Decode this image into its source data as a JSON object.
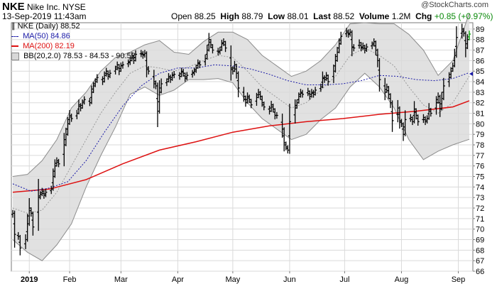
{
  "header": {
    "symbol": "NKE",
    "company": "Nike Inc.",
    "exchange": "NYSE",
    "datetime": "13-Sep-2019 11:43am",
    "watermark": "@StockCharts.com",
    "open_label": "Open",
    "open": "88.25",
    "high_label": "High",
    "high": "88.79",
    "low_label": "Low",
    "low": "88.01",
    "last_label": "Last",
    "last": "88.52",
    "volume_label": "Volume",
    "volume": "1.2M",
    "chg_label": "Chg",
    "chg": "+0.85 (+0.97%)",
    "chg_arrow": "▲"
  },
  "legend": {
    "main": "NKE (Daily) 88.52",
    "ma50": "MA(50) 84.86",
    "ma200": "MA(200) 82.19",
    "bb": "BB(20,2.0) 78.53 - 84.53 - 90.52"
  },
  "colors": {
    "price": "#000000",
    "ma50": "#1a1aa6",
    "ma200": "#dd1111",
    "bb_fill": "#d9d9d9",
    "bb_line": "#8c8c8c",
    "grid": "#dadada",
    "last_bar": "#00a000"
  },
  "chart_data": {
    "type": "line",
    "subtype": "ohlc",
    "ylim": [
      66,
      89.6
    ],
    "yticks": [
      66,
      67,
      68,
      69,
      70,
      71,
      72,
      73,
      74,
      75,
      76,
      77,
      78,
      79,
      80,
      81,
      82,
      83,
      84,
      85,
      86,
      87,
      88,
      89
    ],
    "xlabels": [
      {
        "label": "2019",
        "day": 9,
        "bold": true
      },
      {
        "label": "Feb",
        "day": 31
      },
      {
        "label": "Mar",
        "day": 59
      },
      {
        "label": "Apr",
        "day": 90
      },
      {
        "label": "May",
        "day": 120
      },
      {
        "label": "Jun",
        "day": 151
      },
      {
        "label": "Jul",
        "day": 181
      },
      {
        "label": "Aug",
        "day": 212
      },
      {
        "label": "Sep",
        "day": 243
      }
    ],
    "date_range": {
      "start": "2018-12-24",
      "end": "2019-09-13"
    },
    "series": [
      {
        "name": "NKE (Daily)",
        "kind": "ohlc",
        "points": [
          [
            0,
            71.5
          ],
          [
            1,
            69.5
          ],
          [
            3,
            69.3
          ],
          [
            4,
            68.2
          ],
          [
            7,
            69.0
          ],
          [
            8,
            70.5
          ],
          [
            9,
            72.0
          ],
          [
            10,
            71.5
          ],
          [
            11,
            70.2
          ],
          [
            14,
            73.0
          ],
          [
            15,
            73.3
          ],
          [
            16,
            73.6
          ],
          [
            17,
            73.2
          ],
          [
            18,
            73.5
          ],
          [
            21,
            73.8
          ],
          [
            22,
            75.0
          ],
          [
            23,
            76.0
          ],
          [
            24,
            76.5
          ],
          [
            25,
            76.2
          ],
          [
            28,
            78.0
          ],
          [
            29,
            79.0
          ],
          [
            30,
            80.0
          ],
          [
            31,
            80.8
          ],
          [
            32,
            80.5
          ],
          [
            35,
            81.0
          ],
          [
            36,
            81.8
          ],
          [
            37,
            81.5
          ],
          [
            38,
            82.0
          ],
          [
            39,
            82.3
          ],
          [
            42,
            82.0
          ],
          [
            43,
            83.0
          ],
          [
            44,
            83.6
          ],
          [
            45,
            84.0
          ],
          [
            46,
            84.4
          ],
          [
            49,
            84.0
          ],
          [
            50,
            84.6
          ],
          [
            51,
            85.0
          ],
          [
            52,
            84.5
          ],
          [
            53,
            84.8
          ],
          [
            56,
            85.2
          ],
          [
            57,
            85.6
          ],
          [
            58,
            85.0
          ],
          [
            59,
            85.5
          ],
          [
            60,
            85.6
          ],
          [
            63,
            85.8
          ],
          [
            64,
            86.0
          ],
          [
            65,
            86.5
          ],
          [
            66,
            86.0
          ],
          [
            67,
            86.6
          ],
          [
            70,
            86.7
          ],
          [
            71,
            86.5
          ],
          [
            72,
            86.7
          ],
          [
            73,
            85.3
          ],
          [
            74,
            85.0
          ],
          [
            77,
            84.0
          ],
          [
            78,
            83.6
          ],
          [
            79,
            81.2
          ],
          [
            80,
            83.0
          ],
          [
            81,
            83.8
          ],
          [
            84,
            84.0
          ],
          [
            85,
            84.5
          ],
          [
            86,
            84.2
          ],
          [
            87,
            84.6
          ],
          [
            88,
            84.7
          ],
          [
            91,
            84.5
          ],
          [
            92,
            85.0
          ],
          [
            93,
            84.8
          ],
          [
            94,
            84.3
          ],
          [
            95,
            84.6
          ],
          [
            98,
            84.8
          ],
          [
            99,
            85.0
          ],
          [
            100,
            85.3
          ],
          [
            101,
            85.8
          ],
          [
            102,
            85.6
          ],
          [
            105,
            86.2
          ],
          [
            106,
            87.0
          ],
          [
            107,
            88.0
          ],
          [
            108,
            87.5
          ],
          [
            109,
            87.0
          ],
          [
            112,
            86.8
          ],
          [
            113,
            87.0
          ],
          [
            114,
            87.6
          ],
          [
            115,
            87.8
          ],
          [
            116,
            87.2
          ],
          [
            119,
            85.3
          ],
          [
            120,
            85.0
          ],
          [
            121,
            85.6
          ],
          [
            122,
            84.8
          ],
          [
            123,
            83.4
          ],
          [
            126,
            82.6
          ],
          [
            127,
            82.0
          ],
          [
            128,
            82.6
          ],
          [
            129,
            82.3
          ],
          [
            130,
            81.8
          ],
          [
            133,
            82.5
          ],
          [
            134,
            83.0
          ],
          [
            135,
            82.6
          ],
          [
            136,
            82.0
          ],
          [
            137,
            81.6
          ],
          [
            140,
            81.2
          ],
          [
            141,
            81.8
          ],
          [
            142,
            81.4
          ],
          [
            143,
            80.8
          ],
          [
            144,
            80.8
          ],
          [
            147,
            79.5
          ],
          [
            148,
            78.2
          ],
          [
            149,
            77.8
          ],
          [
            150,
            77.5
          ],
          [
            151,
            80.2
          ],
          [
            154,
            81.5
          ],
          [
            155,
            82.0
          ],
          [
            156,
            82.6
          ],
          [
            157,
            83.0
          ],
          [
            158,
            82.8
          ],
          [
            161,
            83.1
          ],
          [
            162,
            82.6
          ],
          [
            163,
            83.0
          ],
          [
            164,
            82.8
          ],
          [
            165,
            83.2
          ],
          [
            168,
            83.5
          ],
          [
            169,
            84.4
          ],
          [
            170,
            84.2
          ],
          [
            171,
            84.6
          ],
          [
            172,
            84.0
          ],
          [
            175,
            85.0
          ],
          [
            176,
            86.0
          ],
          [
            177,
            86.8
          ],
          [
            178,
            87.6
          ],
          [
            179,
            88.3
          ],
          [
            182,
            88.8
          ],
          [
            183,
            88.5
          ],
          [
            184,
            88.7
          ],
          [
            185,
            87.3
          ],
          [
            186,
            87.2
          ],
          [
            189,
            87.7
          ],
          [
            190,
            87.2
          ],
          [
            191,
            87.4
          ],
          [
            192,
            87.0
          ],
          [
            193,
            87.3
          ],
          [
            196,
            87.5
          ],
          [
            197,
            87.8
          ],
          [
            198,
            87.0
          ],
          [
            199,
            86.0
          ],
          [
            200,
            84.2
          ],
          [
            203,
            83.0
          ],
          [
            204,
            83.5
          ],
          [
            205,
            82.8
          ],
          [
            206,
            82.0
          ],
          [
            207,
            80.3
          ],
          [
            210,
            81.5
          ],
          [
            211,
            80.3
          ],
          [
            212,
            80.0
          ],
          [
            213,
            79.0
          ],
          [
            214,
            80.4
          ],
          [
            217,
            80.6
          ],
          [
            218,
            80.2
          ],
          [
            219,
            81.4
          ],
          [
            220,
            80.8
          ],
          [
            221,
            80.2
          ],
          [
            224,
            80.6
          ],
          [
            225,
            80.2
          ],
          [
            226,
            80.5
          ],
          [
            227,
            81.4
          ],
          [
            228,
            81.0
          ],
          [
            231,
            82.0
          ],
          [
            232,
            82.6
          ],
          [
            233,
            81.4
          ],
          [
            234,
            82.4
          ],
          [
            235,
            83.6
          ],
          [
            238,
            84.4
          ],
          [
            239,
            85.0
          ],
          [
            240,
            85.5
          ],
          [
            241,
            86.5
          ],
          [
            242,
            88.2
          ],
          [
            245,
            89.0
          ],
          [
            246,
            88.6
          ],
          [
            247,
            87.2
          ],
          [
            248,
            88.0
          ],
          [
            249,
            88.52
          ]
        ]
      },
      {
        "name": "MA(50)",
        "kind": "line",
        "points": [
          [
            0,
            74.3
          ],
          [
            10,
            73.6
          ],
          [
            20,
            73.9
          ],
          [
            30,
            74.5
          ],
          [
            40,
            76.5
          ],
          [
            50,
            79.2
          ],
          [
            60,
            81.7
          ],
          [
            70,
            83.6
          ],
          [
            80,
            84.8
          ],
          [
            90,
            85.3
          ],
          [
            100,
            85.3
          ],
          [
            110,
            85.6
          ],
          [
            120,
            85.5
          ],
          [
            130,
            85.2
          ],
          [
            140,
            84.7
          ],
          [
            150,
            84.1
          ],
          [
            160,
            83.7
          ],
          [
            170,
            83.7
          ],
          [
            180,
            83.8
          ],
          [
            190,
            84.1
          ],
          [
            200,
            84.6
          ],
          [
            210,
            84.5
          ],
          [
            220,
            84.2
          ],
          [
            230,
            84.1
          ],
          [
            240,
            84.3
          ],
          [
            249,
            84.86
          ]
        ]
      },
      {
        "name": "MA(200)",
        "kind": "line",
        "points": [
          [
            0,
            73.5
          ],
          [
            20,
            73.8
          ],
          [
            40,
            74.7
          ],
          [
            60,
            76.2
          ],
          [
            80,
            77.5
          ],
          [
            100,
            78.3
          ],
          [
            120,
            79.2
          ],
          [
            140,
            79.8
          ],
          [
            160,
            80.2
          ],
          [
            180,
            80.5
          ],
          [
            200,
            80.9
          ],
          [
            220,
            81.2
          ],
          [
            240,
            81.6
          ],
          [
            249,
            82.19
          ]
        ]
      },
      {
        "name": "BB(20,2.0)",
        "kind": "band",
        "points": [
          [
            0,
            75.0,
            72.0,
            69.0
          ],
          [
            8,
            75.2,
            71.5,
            67.8
          ],
          [
            16,
            76.5,
            71.8,
            67.0
          ],
          [
            24,
            78.5,
            73.5,
            68.5
          ],
          [
            32,
            81.5,
            76.0,
            70.5
          ],
          [
            40,
            83.0,
            78.5,
            74.0
          ],
          [
            48,
            85.0,
            81.0,
            77.0
          ],
          [
            56,
            86.3,
            83.0,
            79.7
          ],
          [
            64,
            86.8,
            84.8,
            82.8
          ],
          [
            72,
            87.5,
            85.5,
            83.5
          ],
          [
            80,
            87.9,
            85.3,
            82.7
          ],
          [
            88,
            86.8,
            85.0,
            83.2
          ],
          [
            96,
            86.6,
            85.4,
            84.2
          ],
          [
            104,
            87.8,
            86.0,
            84.2
          ],
          [
            112,
            88.7,
            86.5,
            84.3
          ],
          [
            120,
            88.7,
            86.3,
            83.9
          ],
          [
            128,
            88.0,
            85.0,
            82.0
          ],
          [
            136,
            86.5,
            83.5,
            80.5
          ],
          [
            144,
            85.5,
            82.5,
            79.5
          ],
          [
            152,
            84.5,
            81.5,
            78.5
          ],
          [
            160,
            85.0,
            82.0,
            79.0
          ],
          [
            168,
            86.0,
            83.2,
            80.4
          ],
          [
            176,
            87.5,
            84.5,
            81.5
          ],
          [
            184,
            89.5,
            86.5,
            83.5
          ],
          [
            192,
            89.6,
            87.2,
            84.8
          ],
          [
            200,
            89.5,
            86.5,
            83.5
          ],
          [
            208,
            89.5,
            85.5,
            81.5
          ],
          [
            216,
            88.5,
            83.5,
            78.5
          ],
          [
            224,
            87.0,
            81.8,
            76.6
          ],
          [
            232,
            84.6,
            81.0,
            77.4
          ],
          [
            240,
            86.0,
            82.0,
            78.0
          ],
          [
            249,
            90.52,
            84.53,
            78.53
          ]
        ]
      }
    ]
  }
}
